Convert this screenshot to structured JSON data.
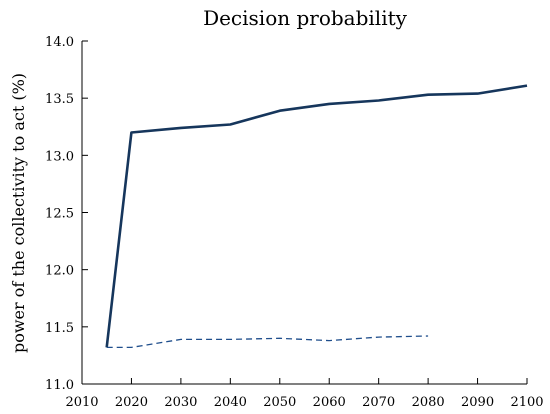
{
  "chart_data": {
    "type": "line",
    "title": "Decision probability",
    "xlabel": "",
    "ylabel": "power of the collectivity to act (%)",
    "xlim": [
      2010,
      2100
    ],
    "ylim": [
      11.0,
      14.0
    ],
    "x_ticks": [
      2010,
      2020,
      2030,
      2040,
      2050,
      2060,
      2070,
      2080,
      2090,
      2100
    ],
    "y_ticks": [
      11.0,
      11.5,
      12.0,
      12.5,
      13.0,
      13.5,
      14.0
    ],
    "x_tick_labels": [
      "2010",
      "2020",
      "2030",
      "2040",
      "2050",
      "2060",
      "2070",
      "2080",
      "2090",
      "2100"
    ],
    "y_tick_labels": [
      "11.0",
      "11.5",
      "12.0",
      "12.5",
      "13.0",
      "13.5",
      "14.0"
    ],
    "grid": false,
    "legend": "none",
    "series": [
      {
        "style": "solid",
        "color": "#16365c",
        "x": [
          2015,
          2020,
          2030,
          2040,
          2050,
          2060,
          2070,
          2080,
          2090,
          2100
        ],
        "y": [
          11.32,
          13.2,
          13.24,
          13.27,
          13.39,
          13.45,
          13.48,
          13.53,
          13.54,
          13.61
        ]
      },
      {
        "style": "dashed",
        "color": "#1f4e8c",
        "x": [
          2015,
          2020,
          2030,
          2040,
          2050,
          2060,
          2070,
          2080
        ],
        "y": [
          11.32,
          11.32,
          11.39,
          11.39,
          11.4,
          11.38,
          11.41,
          11.42
        ]
      }
    ]
  }
}
